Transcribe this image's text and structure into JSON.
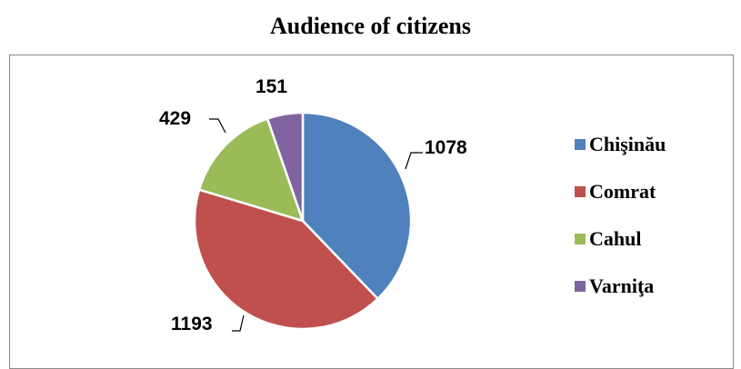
{
  "chart_data": {
    "type": "pie",
    "title": "Audience of citizens",
    "categories": [
      "Chişinău",
      "Comrat",
      "Cahul",
      "Varniţa"
    ],
    "values": [
      1078,
      1193,
      429,
      151
    ],
    "colors": [
      "#4f81bd",
      "#c0504d",
      "#9bbb59",
      "#8064a2"
    ],
    "data_labels": [
      "1078",
      "1193",
      "429",
      "151"
    ],
    "legend_position": "right",
    "start_angle": "12 o'clock, clockwise"
  }
}
